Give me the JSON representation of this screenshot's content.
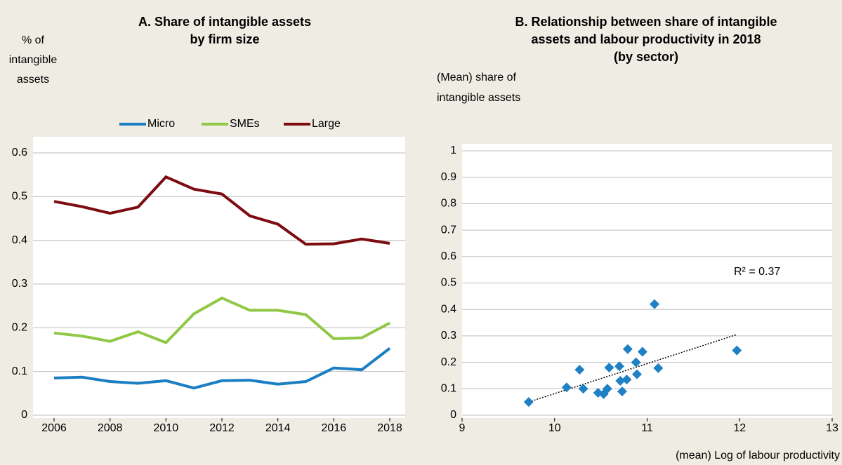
{
  "chart_data": [
    {
      "type": "line",
      "title": [
        "A. Share of intangible assets",
        "by firm size"
      ],
      "y_label": [
        "% of",
        "intangible",
        "assets"
      ],
      "x": [
        2006,
        2007,
        2008,
        2009,
        2010,
        2011,
        2012,
        2013,
        2014,
        2015,
        2016,
        2017,
        2018
      ],
      "series": [
        {
          "name": "Micro",
          "color": "#1b7ec3",
          "values": [
            0.085,
            0.087,
            0.077,
            0.073,
            0.079,
            0.062,
            0.079,
            0.08,
            0.071,
            0.077,
            0.108,
            0.104,
            0.153
          ]
        },
        {
          "name": "SMEs",
          "color": "#90c846",
          "values": [
            0.188,
            0.181,
            0.169,
            0.191,
            0.166,
            0.232,
            0.268,
            0.24,
            0.24,
            0.23,
            0.175,
            0.177,
            0.211
          ]
        },
        {
          "name": "Large",
          "color": "#7c0c10",
          "values": [
            0.489,
            0.477,
            0.462,
            0.476,
            0.545,
            0.517,
            0.506,
            0.456,
            0.437,
            0.391,
            0.392,
            0.403,
            0.393
          ]
        }
      ],
      "xlim": [
        2005.25,
        2018.55
      ],
      "xticks": [
        2006,
        2008,
        2010,
        2012,
        2014,
        2016,
        2018
      ],
      "ylim": [
        0,
        0.6
      ],
      "yticks": [
        0,
        0.1,
        0.2,
        0.3,
        0.4,
        0.5,
        0.6
      ],
      "grid": true,
      "legend": "top"
    },
    {
      "type": "scatter",
      "title": [
        "B. Relationship between share of intangible",
        "assets and labour productivity in 2018",
        "(by sector)"
      ],
      "y_label": [
        "(Mean) share of",
        "intangible assets"
      ],
      "x_label": "(mean) Log of labour productivity",
      "annotation": "R² = 0.37",
      "color": "#1f80c4",
      "x": [
        9.72,
        10.13,
        10.27,
        10.31,
        10.47,
        10.53,
        10.57,
        10.59,
        10.7,
        10.71,
        10.73,
        10.78,
        10.79,
        10.88,
        10.89,
        10.95,
        11.08,
        11.12,
        11.97
      ],
      "values": [
        0.05,
        0.105,
        0.172,
        0.1,
        0.085,
        0.08,
        0.1,
        0.18,
        0.185,
        0.13,
        0.09,
        0.135,
        0.25,
        0.2,
        0.155,
        0.24,
        0.42,
        0.178,
        0.245
      ],
      "trendline": {
        "x": [
          9.72,
          11.97
        ],
        "y": [
          0.05,
          0.305
        ]
      },
      "xlim": [
        9,
        13
      ],
      "xticks": [
        9,
        10,
        11,
        12,
        13
      ],
      "ylim": [
        0,
        1
      ],
      "yticks": [
        0,
        0.1,
        0.2,
        0.3,
        0.4,
        0.5,
        0.6,
        0.7,
        0.8,
        0.9,
        1
      ],
      "grid": true
    }
  ]
}
